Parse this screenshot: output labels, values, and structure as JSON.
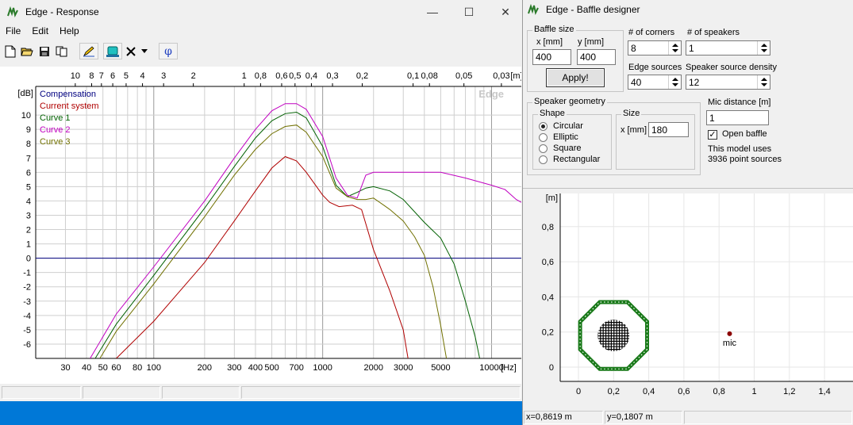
{
  "response_window": {
    "title": "Edge - Response",
    "controls": {
      "minimize": "—",
      "maximize": "☐",
      "close": "✕"
    },
    "menu": [
      "File",
      "Edit",
      "Help"
    ],
    "toolbar": {
      "icons": [
        "new-file-icon",
        "open-folder-icon",
        "save-icon",
        "copy-icon",
        "pencil-icon",
        "speaker-icon",
        "delete-icon",
        "dropdown-icon",
        "phase-icon"
      ],
      "phi_label": "φ"
    },
    "plot": {
      "watermark": "Edge",
      "x_unit_top": "[m]",
      "x_unit_bottom": "[Hz]",
      "y_unit": "[dB]"
    },
    "status_panels": [
      "",
      "",
      "",
      ""
    ]
  },
  "chart_data": {
    "type": "line",
    "x_scale": "log",
    "xlim_hz": [
      20,
      15000
    ],
    "ylim_db": [
      -7,
      12
    ],
    "y_ticks": [
      10,
      9,
      8,
      7,
      6,
      5,
      4,
      3,
      2,
      1,
      0,
      -1,
      -2,
      -3,
      -4,
      -5,
      -6
    ],
    "y_tick_labels": [
      "10",
      "9",
      "8",
      "7",
      "6",
      "5",
      "4",
      "3",
      "2",
      "1",
      "0",
      "-1",
      "-2",
      "-3",
      "-4",
      "-5",
      "-6"
    ],
    "x_ticks_hz": [
      30,
      40,
      50,
      60,
      80,
      100,
      200,
      300,
      400,
      500,
      700,
      1000,
      2000,
      3000,
      5000,
      10000
    ],
    "x_tick_labels": [
      "30",
      "40",
      "50",
      "60",
      "80",
      "100",
      "200",
      "300",
      "400",
      "500",
      "700",
      "1000",
      "2000",
      "3000",
      "5000",
      "10000"
    ],
    "top_ticks_m": [
      10,
      8,
      7,
      6,
      5,
      4,
      3,
      2,
      1,
      0.8,
      0.6,
      0.5,
      0.4,
      0.3,
      0.2,
      0.1,
      0.08,
      0.05,
      0.03
    ],
    "top_tick_labels": [
      "10",
      "8",
      "7",
      "6",
      "5",
      "4",
      "3",
      "2",
      "1",
      "0,8",
      "0,6",
      "0,5",
      "0,4",
      "0,3",
      "0,2",
      "0,1",
      "0,08",
      "0,05",
      "0,03"
    ],
    "legend": [
      {
        "name": "Compensation",
        "color": "#000080"
      },
      {
        "name": "Current system",
        "color": "#b00000"
      },
      {
        "name": "Curve 1",
        "color": "#006000"
      },
      {
        "name": "Curve 2",
        "color": "#c000c0"
      },
      {
        "name": "Curve 3",
        "color": "#707000"
      }
    ],
    "series": [
      {
        "name": "Compensation",
        "color": "#000080",
        "points": [
          [
            20,
            0
          ],
          [
            15000,
            0
          ]
        ]
      },
      {
        "name": "Current system",
        "color": "#b00000",
        "points": [
          [
            60,
            -7
          ],
          [
            100,
            -4.4
          ],
          [
            200,
            -0.3
          ],
          [
            300,
            2.6
          ],
          [
            400,
            4.7
          ],
          [
            500,
            6.3
          ],
          [
            600,
            7.1
          ],
          [
            700,
            6.8
          ],
          [
            800,
            6.0
          ],
          [
            1000,
            4.4
          ],
          [
            1100,
            3.9
          ],
          [
            1250,
            3.6
          ],
          [
            1500,
            3.7
          ],
          [
            1700,
            3.4
          ],
          [
            2000,
            0.6
          ],
          [
            2500,
            -2.3
          ],
          [
            3000,
            -5.0
          ],
          [
            3200,
            -7
          ]
        ]
      },
      {
        "name": "Curve 1",
        "color": "#006000",
        "points": [
          [
            45,
            -7
          ],
          [
            60,
            -4.6
          ],
          [
            100,
            -1.2
          ],
          [
            200,
            3.5
          ],
          [
            300,
            6.4
          ],
          [
            400,
            8.4
          ],
          [
            500,
            9.6
          ],
          [
            600,
            10.1
          ],
          [
            700,
            10.2
          ],
          [
            800,
            9.8
          ],
          [
            1000,
            7.8
          ],
          [
            1200,
            5.1
          ],
          [
            1400,
            4.3
          ],
          [
            1600,
            4.6
          ],
          [
            1800,
            4.9
          ],
          [
            2000,
            5.0
          ],
          [
            2500,
            4.7
          ],
          [
            3000,
            4.1
          ],
          [
            4000,
            2.5
          ],
          [
            5000,
            1.4
          ],
          [
            6000,
            -0.4
          ],
          [
            7000,
            -3.0
          ],
          [
            8000,
            -5.5
          ],
          [
            8500,
            -7
          ]
        ]
      },
      {
        "name": "Curve 2",
        "color": "#c000c0",
        "points": [
          [
            42,
            -7
          ],
          [
            60,
            -3.9
          ],
          [
            100,
            -0.6
          ],
          [
            200,
            4.0
          ],
          [
            300,
            7.0
          ],
          [
            400,
            9.0
          ],
          [
            500,
            10.3
          ],
          [
            600,
            10.8
          ],
          [
            700,
            10.8
          ],
          [
            800,
            10.4
          ],
          [
            1000,
            8.5
          ],
          [
            1200,
            5.6
          ],
          [
            1400,
            4.4
          ],
          [
            1600,
            4.2
          ],
          [
            1800,
            5.8
          ],
          [
            2000,
            6.0
          ],
          [
            3000,
            6.0
          ],
          [
            5000,
            6.0
          ],
          [
            7000,
            5.6
          ],
          [
            10000,
            5.1
          ],
          [
            12000,
            4.8
          ],
          [
            14000,
            4.1
          ],
          [
            15000,
            3.9
          ]
        ]
      },
      {
        "name": "Curve 3",
        "color": "#707000",
        "points": [
          [
            48,
            -7
          ],
          [
            60,
            -5.1
          ],
          [
            100,
            -1.8
          ],
          [
            200,
            2.9
          ],
          [
            300,
            5.8
          ],
          [
            400,
            7.6
          ],
          [
            500,
            8.7
          ],
          [
            600,
            9.2
          ],
          [
            700,
            9.3
          ],
          [
            800,
            8.8
          ],
          [
            1000,
            7.1
          ],
          [
            1200,
            4.9
          ],
          [
            1400,
            4.3
          ],
          [
            1600,
            4.1
          ],
          [
            1800,
            4.1
          ],
          [
            2000,
            4.2
          ],
          [
            2300,
            3.7
          ],
          [
            2500,
            3.4
          ],
          [
            3000,
            2.6
          ],
          [
            3500,
            1.5
          ],
          [
            4000,
            0.2
          ],
          [
            4500,
            -2.0
          ],
          [
            5000,
            -4.7
          ],
          [
            5400,
            -7
          ]
        ]
      }
    ]
  },
  "baffle_window": {
    "title": "Edge - Baffle designer",
    "baffle_size": {
      "group_label": "Baffle size",
      "x_label": "x [mm]",
      "y_label": "y [mm]",
      "x_value": "400",
      "y_value": "400",
      "apply_label": "Apply!"
    },
    "corners": {
      "label": "# of corners",
      "value": "8"
    },
    "speakers": {
      "label": "# of speakers",
      "value": "1"
    },
    "edge_sources": {
      "label": "Edge sources",
      "value": "40"
    },
    "source_density": {
      "label": "Speaker source density",
      "value": "12"
    },
    "geometry": {
      "group_label": "Speaker geometry",
      "shape_label": "Shape",
      "shapes": [
        "Circular",
        "Elliptic",
        "Square",
        "Rectangular"
      ],
      "selected": "Circular",
      "size_label": "Size",
      "size_x_label": "x [mm]",
      "size_x_value": "180"
    },
    "mic_distance": {
      "label": "Mic distance [m]",
      "value": "1"
    },
    "open_baffle": {
      "label": "Open baffle",
      "checked": true
    },
    "model_info": {
      "line1": "This model uses",
      "line2": "3936 point sources"
    },
    "plot": {
      "unit": "[m]",
      "y_tick_labels": [
        "0,8",
        "0,6",
        "0,4",
        "0,2",
        "0"
      ],
      "x_tick_labels": [
        "0",
        "0,2",
        "0,4",
        "0,6",
        "0,8",
        "1",
        "1,2",
        "1,4"
      ],
      "mic_label": "mic",
      "mic_position_m": [
        0.86,
        0.19
      ],
      "baffle_size_m": 0.4,
      "speaker_diameter_m": 0.18,
      "baffle_color": "#1a7a1a",
      "speaker_color": "#000000",
      "mic_color": "#8b0000"
    },
    "status": {
      "x": "x=0,8619 m",
      "y": "y=0,1807 m"
    }
  },
  "taskbar": {
    "color": "#0078d7"
  }
}
